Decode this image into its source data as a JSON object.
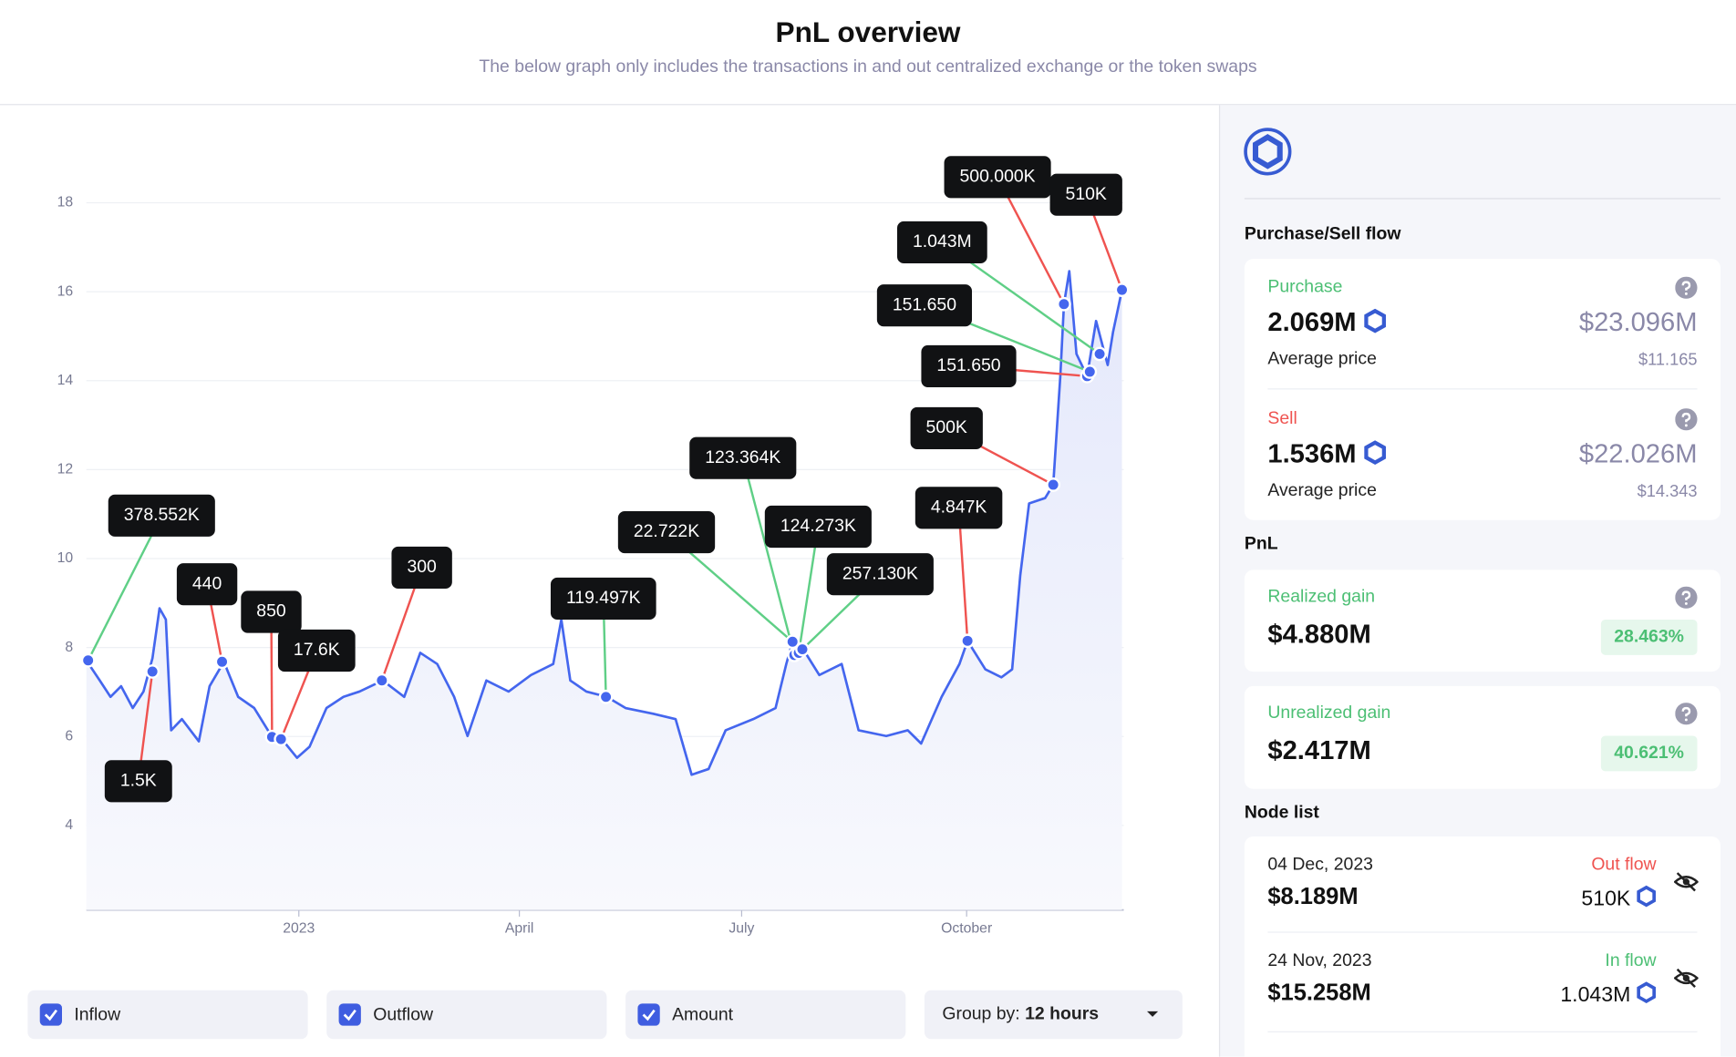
{
  "header": {
    "title": "PnL overview",
    "subtitle": "The below graph only includes the transactions in and out centralized exchange or the token swaps"
  },
  "chart_data": {
    "type": "line",
    "color": "#4466ee",
    "inflow_color": "#5fcf86",
    "outflow_color": "#ef5350",
    "grid": true,
    "x": [
      2022.762,
      2022.777,
      2022.789,
      2022.801,
      2022.814,
      2022.826,
      2022.836,
      2022.844,
      2022.851,
      2022.857,
      2022.869,
      2022.888,
      2022.9,
      2022.916,
      2022.932,
      2022.95,
      2022.97,
      2022.985,
      2022.998,
      2023.012,
      2023.031,
      2023.05,
      2023.068,
      2023.094,
      2023.118,
      2023.136,
      2023.155,
      2023.174,
      2023.189,
      2023.21,
      2023.235,
      2023.26,
      2023.285,
      2023.294,
      2023.304,
      2023.322,
      2023.345,
      2023.366,
      2023.397,
      2023.422,
      2023.44,
      2023.459,
      2023.478,
      2023.509,
      2023.534,
      2023.546,
      2023.553,
      2023.565,
      2023.583,
      2023.608,
      2023.627,
      2023.658,
      2023.682,
      2023.697,
      2023.72,
      2023.74,
      2023.749,
      2023.769,
      2023.787,
      2023.799,
      2023.808,
      2023.818,
      2023.836,
      2023.845,
      2023.853,
      2023.857,
      2023.863,
      2023.871,
      2023.883,
      2023.893,
      2023.906,
      2023.912,
      2023.922
    ],
    "values": [
      7.71,
      7.26,
      6.89,
      7.13,
      6.64,
      7.01,
      7.76,
      8.88,
      8.63,
      6.14,
      6.39,
      5.89,
      7.13,
      7.68,
      6.89,
      6.64,
      5.99,
      5.84,
      5.52,
      5.77,
      6.64,
      6.89,
      7.01,
      7.26,
      6.89,
      7.88,
      7.63,
      6.89,
      6.01,
      7.26,
      7.01,
      7.38,
      7.63,
      8.63,
      7.26,
      7.01,
      6.89,
      6.64,
      6.51,
      6.39,
      5.14,
      5.27,
      6.14,
      6.39,
      6.64,
      7.63,
      8.13,
      7.96,
      7.38,
      7.63,
      6.14,
      6.01,
      6.14,
      5.84,
      6.89,
      7.63,
      8.15,
      7.51,
      7.33,
      7.51,
      9.62,
      11.24,
      11.36,
      11.66,
      14.1,
      15.72,
      16.46,
      14.6,
      14.1,
      15.34,
      14.35,
      15.09,
      16.04
    ],
    "xlim": [
      2022.762,
      2023.924
    ],
    "xticks": [
      {
        "value": 2023,
        "label": "2023"
      },
      {
        "value": 2023.247,
        "label": "April"
      },
      {
        "value": 2023.496,
        "label": "July"
      },
      {
        "value": 2023.748,
        "label": "October"
      }
    ],
    "ylim": [
      2.1,
      19
    ],
    "yticks": [
      4,
      6,
      8,
      10,
      12,
      14,
      16,
      18
    ],
    "annotations": [
      {
        "label": "378.552K",
        "x": 2022.764,
        "y": 7.71,
        "flow": "in"
      },
      {
        "label": "1.5K",
        "x": 2022.836,
        "y": 7.46,
        "flow": "out"
      },
      {
        "label": "440",
        "x": 2022.914,
        "y": 7.68,
        "flow": "out"
      },
      {
        "label": "850",
        "x": 2022.97,
        "y": 5.99,
        "flow": "out"
      },
      {
        "label": "17.6K",
        "x": 2022.98,
        "y": 5.94,
        "flow": "out"
      },
      {
        "label": "300",
        "x": 2023.093,
        "y": 7.26,
        "flow": "out"
      },
      {
        "label": "119.497K",
        "x": 2023.344,
        "y": 6.89,
        "flow": "in"
      },
      {
        "label": "22.722K",
        "x": 2023.553,
        "y": 8.13,
        "flow": "in"
      },
      {
        "label": "123.364K",
        "x": 2023.555,
        "y": 7.83,
        "flow": "in"
      },
      {
        "label": "124.273K",
        "x": 2023.56,
        "y": 7.88,
        "flow": "in"
      },
      {
        "label": "257.130K",
        "x": 2023.564,
        "y": 7.96,
        "flow": "in"
      },
      {
        "label": "4.847K",
        "x": 2023.749,
        "y": 8.15,
        "flow": "out"
      },
      {
        "label": "500K",
        "x": 2023.845,
        "y": 11.66,
        "flow": "out"
      },
      {
        "label": "151.650",
        "x": 2023.883,
        "y": 14.1,
        "flow": "out"
      },
      {
        "label": "151.650",
        "x": 2023.886,
        "y": 14.2,
        "flow": "in"
      },
      {
        "label": "1.043M",
        "x": 2023.897,
        "y": 14.6,
        "flow": "in"
      },
      {
        "label": "500.000K",
        "x": 2023.857,
        "y": 15.72,
        "flow": "out"
      },
      {
        "label": "510K",
        "x": 2023.922,
        "y": 16.04,
        "flow": "out"
      }
    ]
  },
  "controls": {
    "toggles": [
      "Inflow",
      "Outflow",
      "Amount"
    ],
    "group_by_label": "Group by:",
    "group_by_value": "12 hours"
  },
  "sidebar": {
    "flow_title": "Purchase/Sell flow",
    "purchase": {
      "label": "Purchase",
      "amount": "2.069M",
      "usd": "$23.096M",
      "avg_label": "Average price",
      "avg": "$11.165"
    },
    "sell": {
      "label": "Sell",
      "amount": "1.536M",
      "usd": "$22.026M",
      "avg_label": "Average price",
      "avg": "$14.343"
    },
    "pnl_title": "PnL",
    "realized": {
      "label": "Realized gain",
      "value": "$4.880M",
      "pct": "28.463%"
    },
    "unrealized": {
      "label": "Unrealized gain",
      "value": "$2.417M",
      "pct": "40.621%"
    },
    "node_title": "Node list",
    "nodes": [
      {
        "date": "04 Dec, 2023",
        "value": "$8.189M",
        "flow": "Out flow",
        "amount": "510K"
      },
      {
        "date": "24 Nov, 2023",
        "value": "$15.258M",
        "flow": "In flow",
        "amount": "1.043M"
      }
    ]
  }
}
